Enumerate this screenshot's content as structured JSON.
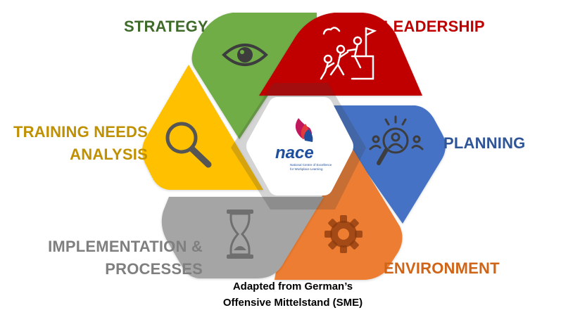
{
  "labels": {
    "strategy": "STRATEGY",
    "leadership": "LEADERSHIP",
    "planning": "PLANNING",
    "training_needs_analysis": [
      "TRAINING NEEDS",
      "ANALYSIS"
    ],
    "implementation_processes": [
      "IMPLEMENTATION &",
      "PROCESSES"
    ],
    "environment": "ENVIRONMENT"
  },
  "center_logo": {
    "wordmark": "nace",
    "tagline": [
      "National Centre of Excellence",
      "for Workplace Learning"
    ]
  },
  "caption": [
    "Adapted from German’s",
    "Offensive Mittelstand (SME)"
  ],
  "colors": {
    "strategy": "#70ad47",
    "leadership": "#c00000",
    "planning": "#4472c4",
    "training_needs_analysis": "#ffc000",
    "implementation_processes": "#a5a5a5",
    "environment": "#ed7d31",
    "nace_blue": "#1f4e9c"
  },
  "icons": {
    "strategy": "eye-icon",
    "leadership": "team-climbing-flag-icon",
    "planning": "magnifier-people-icon",
    "training_needs_analysis": "magnifier-icon",
    "implementation_processes": "hourglass-icon",
    "environment": "gear-icon"
  }
}
